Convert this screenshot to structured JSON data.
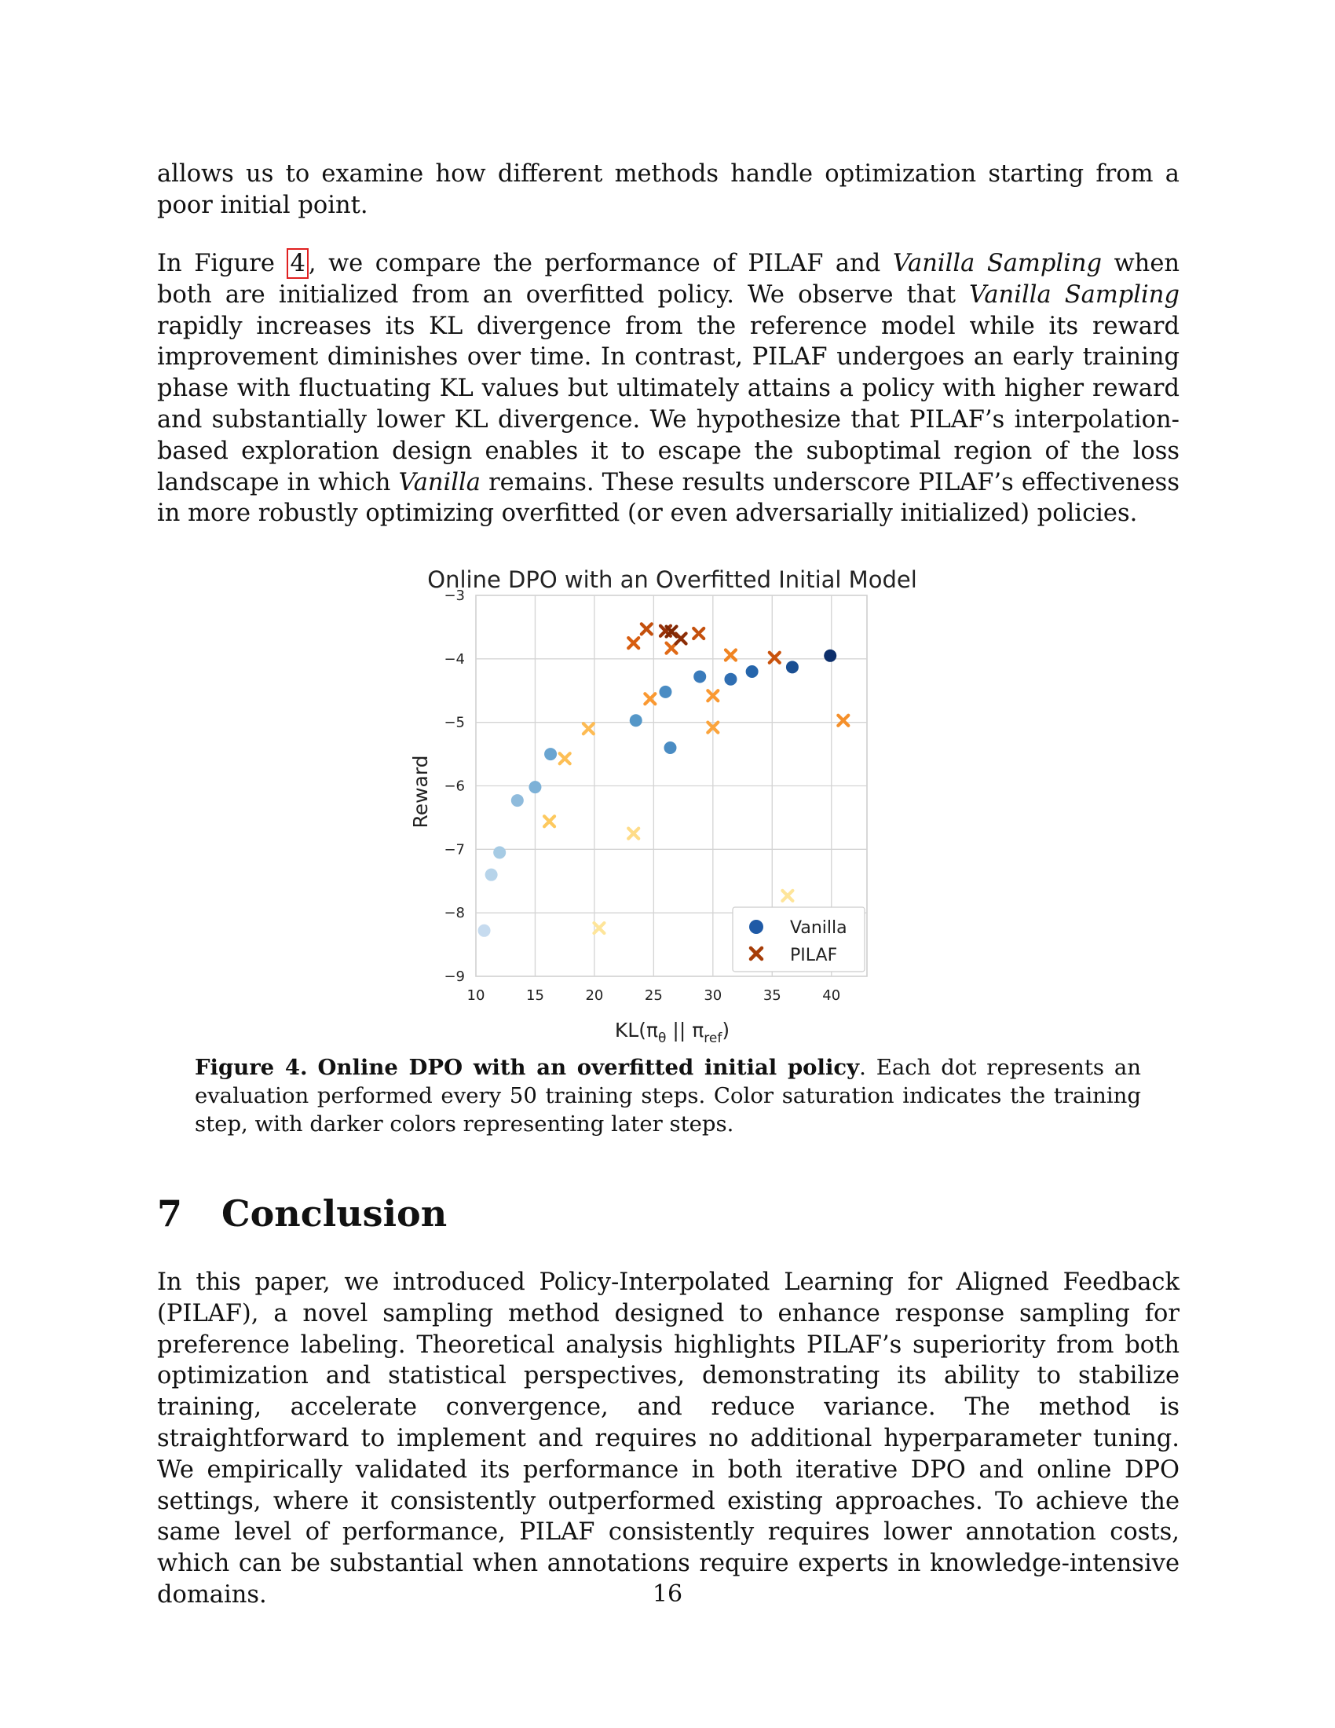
{
  "paragraphs": {
    "p1": "allows us to examine how different methods handle optimization starting from a poor initial point.",
    "p2_a": "In Figure ",
    "p2_ref": "4",
    "p2_b": ", we compare the performance of PILAF and ",
    "p2_em1": "Vanilla Sampling",
    "p2_c": " when both are initialized from an overfitted policy. We observe that ",
    "p2_em2": "Vanilla Sampling",
    "p2_d": " rapidly increases its KL divergence from the reference model while its reward improvement diminishes over time. In contrast, PILAF undergoes an early training phase with fluctuating KL values but ultimately attains a policy with higher reward and substantially lower KL divergence. We hypothesize that PILAF’s interpolation-based exploration design enables it to escape the suboptimal region of the loss landscape in which ",
    "p2_em3": "Vanilla",
    "p2_e": " remains. These results underscore PILAF’s effectiveness in more robustly optimizing overfitted (or even adversarially initialized) policies.",
    "p3": "In this paper, we introduced Policy-Interpolated Learning for Aligned Feedback (PILAF), a novel sampling method designed to enhance response sampling for preference labeling. Theoretical analysis highlights PILAF’s superiority from both optimization and statistical perspectives, demonstrating its ability to stabilize training, accelerate convergence, and reduce variance. The method is straightforward to implement and requires no additional hyperparameter tuning. We empirically validated its performance in both iterative DPO and online DPO settings, where it consistently outperformed existing approaches. To achieve the same level of performance, PILAF consistently requires lower annotation costs, which can be substantial when annotations require experts in knowledge-intensive domains."
  },
  "caption": {
    "label": "Figure 4.",
    "title": "Online DPO with an overfitted initial policy",
    "text": ". Each dot represents an evaluation performed every 50 training steps. Color saturation indicates the training step, with darker colors representing later steps."
  },
  "section": {
    "number": "7",
    "title": "Conclusion"
  },
  "page_number": "16",
  "chart_data": {
    "type": "scatter",
    "title": "Online DPO with an Overfitted Initial Model",
    "xlabel": "KL(π",
    "xlabel_sub1": "θ",
    "xlabel_mid": " || π",
    "xlabel_sub2": "ref",
    "xlabel_end": ")",
    "ylabel": "Reward",
    "xlim": [
      10,
      43
    ],
    "ylim": [
      -9,
      -3
    ],
    "xticks": [
      10,
      15,
      20,
      25,
      30,
      35,
      40
    ],
    "yticks": [
      -9,
      -8,
      -7,
      -6,
      -5,
      -4,
      -3
    ],
    "grid": true,
    "legend_position": "lower-right",
    "series": [
      {
        "name": "Vanilla",
        "marker": "circle",
        "legend_color": "#1f5aa6",
        "points": [
          {
            "x": 10.7,
            "y": -8.28,
            "c": "#c6dbef"
          },
          {
            "x": 11.3,
            "y": -7.4,
            "c": "#b7d4ea"
          },
          {
            "x": 12.0,
            "y": -7.05,
            "c": "#a6cbe4"
          },
          {
            "x": 13.5,
            "y": -6.23,
            "c": "#8fbbdc"
          },
          {
            "x": 15.0,
            "y": -6.02,
            "c": "#7db1d7"
          },
          {
            "x": 16.3,
            "y": -5.5,
            "c": "#6aa5d1"
          },
          {
            "x": 23.5,
            "y": -4.97,
            "c": "#5597c8"
          },
          {
            "x": 26.0,
            "y": -4.52,
            "c": "#4a8cc3"
          },
          {
            "x": 26.4,
            "y": -5.4,
            "c": "#4a8cc3"
          },
          {
            "x": 28.9,
            "y": -4.28,
            "c": "#3a7bbb"
          },
          {
            "x": 31.5,
            "y": -4.32,
            "c": "#2f6eb2"
          },
          {
            "x": 33.3,
            "y": -4.2,
            "c": "#2565ab"
          },
          {
            "x": 36.7,
            "y": -4.13,
            "c": "#1a4f93"
          },
          {
            "x": 39.9,
            "y": -3.95,
            "c": "#0d2f6b"
          }
        ]
      },
      {
        "name": "PILAF",
        "marker": "x",
        "legend_color": "#a63d08",
        "points": [
          {
            "x": 16.2,
            "y": -6.56,
            "c": "#fdc95e"
          },
          {
            "x": 17.5,
            "y": -5.57,
            "c": "#fdbf55"
          },
          {
            "x": 19.5,
            "y": -5.1,
            "c": "#fdbb54"
          },
          {
            "x": 20.4,
            "y": -8.24,
            "c": "#fee59a"
          },
          {
            "x": 23.3,
            "y": -6.75,
            "c": "#fedc88"
          },
          {
            "x": 24.7,
            "y": -4.63,
            "c": "#fa9932"
          },
          {
            "x": 30.0,
            "y": -4.58,
            "c": "#fa9932"
          },
          {
            "x": 30.0,
            "y": -5.08,
            "c": "#fba43c"
          },
          {
            "x": 31.5,
            "y": -3.94,
            "c": "#f08421"
          },
          {
            "x": 23.3,
            "y": -3.75,
            "c": "#d75d10"
          },
          {
            "x": 24.4,
            "y": -3.53,
            "c": "#c4500d"
          },
          {
            "x": 26.0,
            "y": -3.56,
            "c": "#983108"
          },
          {
            "x": 26.5,
            "y": -3.57,
            "c": "#7f2704"
          },
          {
            "x": 26.5,
            "y": -3.83,
            "c": "#e06a17"
          },
          {
            "x": 27.3,
            "y": -3.68,
            "c": "#8c2d06"
          },
          {
            "x": 28.8,
            "y": -3.6,
            "c": "#c4500d"
          },
          {
            "x": 35.2,
            "y": -3.98,
            "c": "#c9520c"
          },
          {
            "x": 36.3,
            "y": -7.73,
            "c": "#fee59a"
          },
          {
            "x": 41.0,
            "y": -4.97,
            "c": "#f5902b"
          }
        ]
      }
    ]
  }
}
